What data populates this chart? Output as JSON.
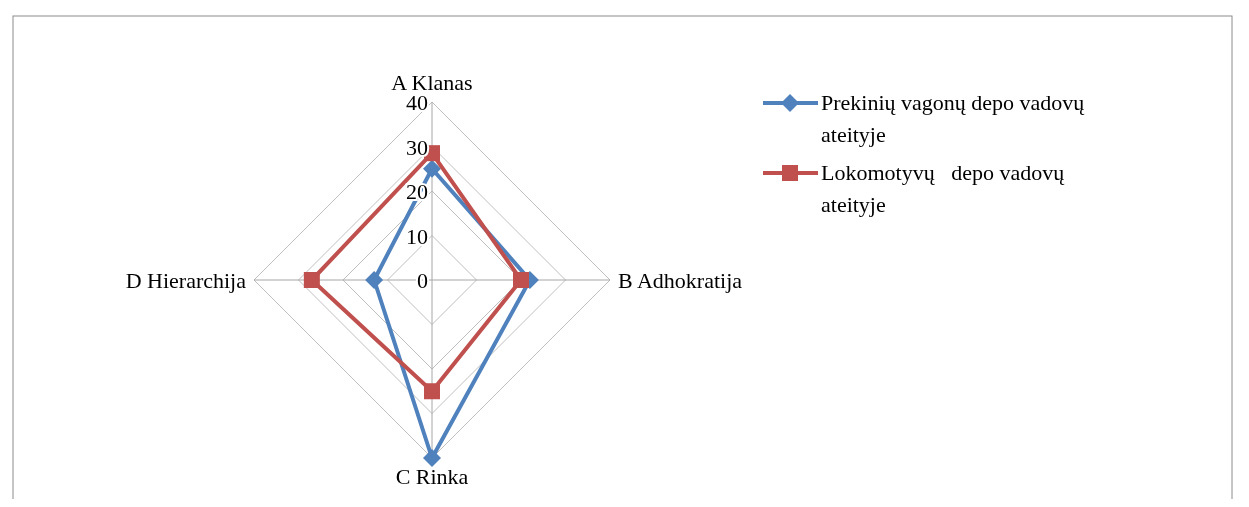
{
  "chart_data": {
    "type": "radar",
    "categories": [
      "A Klanas",
      "B Adhokratija",
      "C Rinka",
      "D Hierarchija"
    ],
    "series": [
      {
        "name": "Prekinių vagonų depo vadovų ateityje",
        "color": "#4f81bd",
        "values": [
          25,
          22,
          40,
          13
        ],
        "marker": "diamond"
      },
      {
        "name": "Lokomotyvų   depo vadovų ateityje",
        "color": "#c0504d",
        "values": [
          28.5,
          20,
          25,
          27
        ],
        "marker": "square"
      }
    ],
    "ylim": [
      0,
      40
    ],
    "yticks": [
      0,
      10,
      20,
      30,
      40
    ],
    "grid": true,
    "legend": "right"
  }
}
